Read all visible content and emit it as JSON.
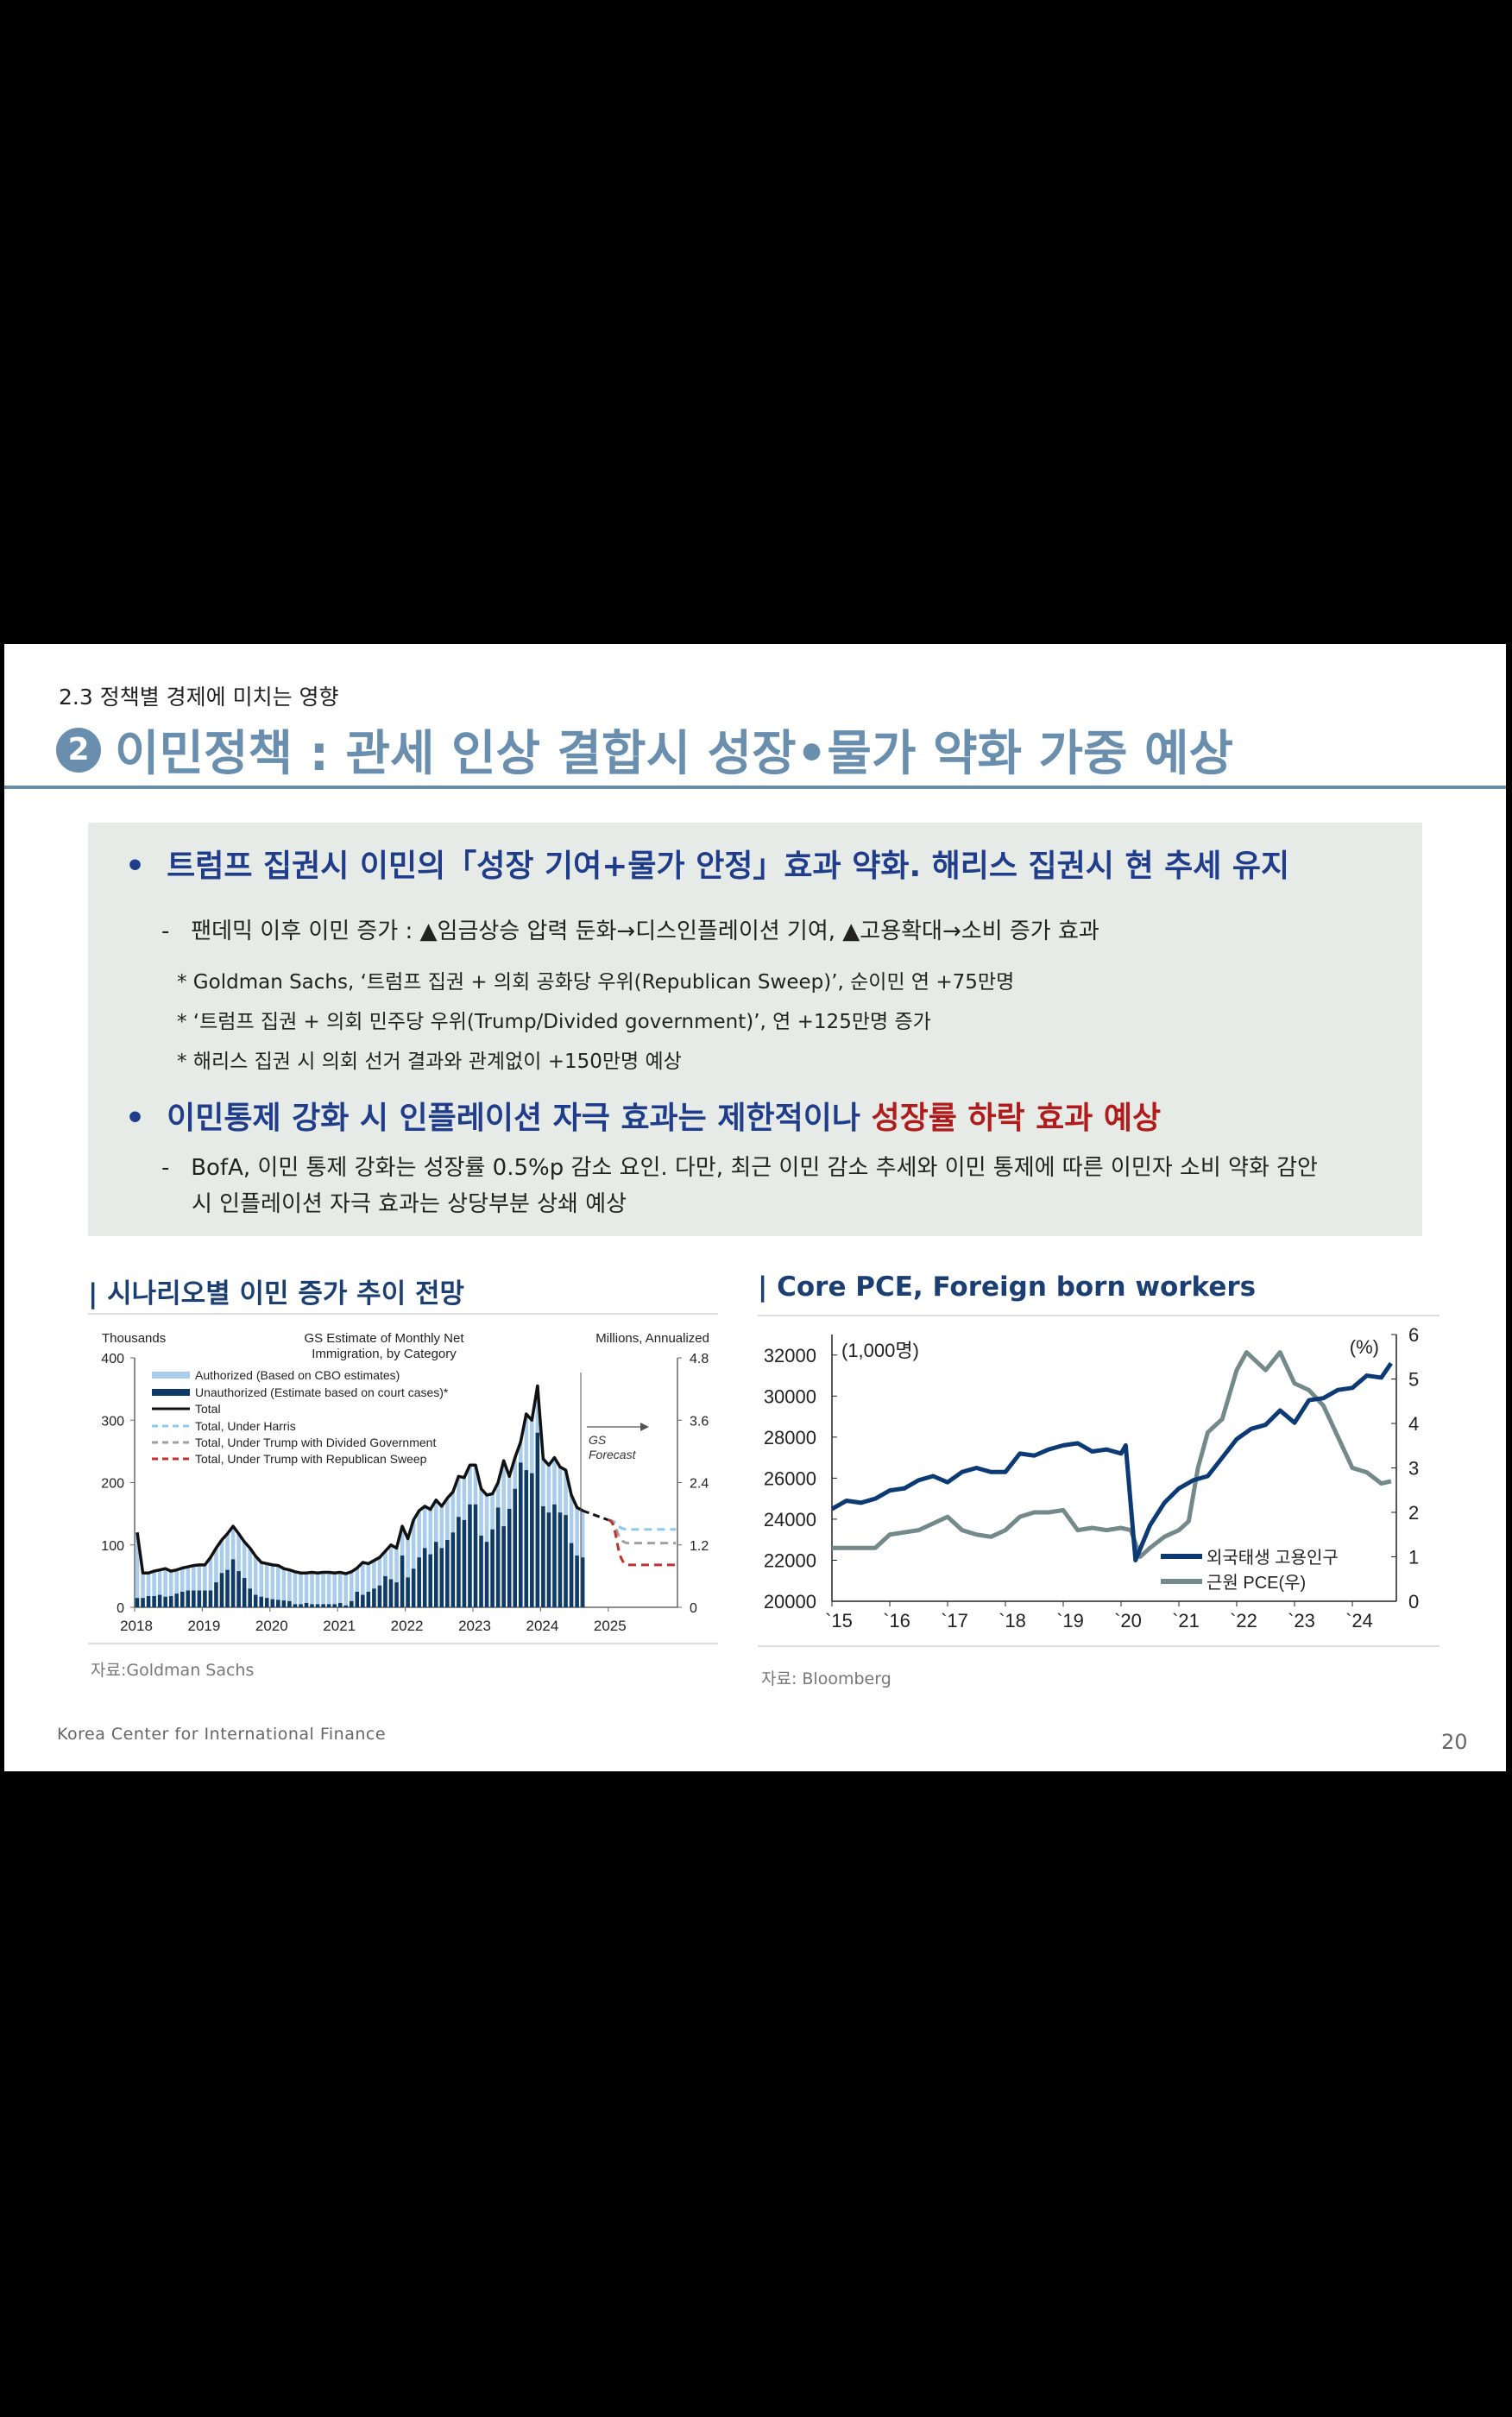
{
  "header": {
    "section": "2.3 정책별 경제에 미치는 영향",
    "number": "2",
    "title": "이민정책 :  관세 인상 결합시 성장•물가 약화 가중 예상"
  },
  "summary": {
    "bullet1": "트럼프 집권시 이민의「성장 기여+물가 안정」효과 약화. 해리스 집권시 현 추세 유지",
    "bullet1_sub": "팬데믹 이후 이민 증가 : ▲임금상승 압력 둔화→디스인플레이션 기여, ▲고용확대→소비 증가 효과",
    "notes": [
      "* Goldman Sachs, ‘트럼프 집권 + 의회 공화당 우위(Republican Sweep)’, 순이민 연 +75만명",
      "* ‘트럼프 집권 + 의회 민주당 우위(Trump/Divided government)’, 연 +125만명 증가",
      "* 해리스 집권 시 의회 선거 결과와 관계없이 +150만명 예상"
    ],
    "bullet2_main": "이민통제 강화 시 인플레이션 자극 효과는 제한적이나 ",
    "bullet2_red": "성장률 하락 효과 예상",
    "bullet2_sub1": "BofA, 이민 통제 강화는 성장률 0.5%p 감소 요인. 다만, 최근 이민 감소 추세와 이민 통제에 따른 이민자 소비 약화 감안",
    "bullet2_sub2": "시 인플레이션 자극 효과는 상당부분 상쇄 예상",
    "dash": "-",
    "dot": "•"
  },
  "chart_data": [
    {
      "type": "bar",
      "panel_title": "| 시나리오별 이민 증가 추이 전망",
      "title": "GS Estimate of Monthly Net Immigration, by Category",
      "title_lines": [
        "GS Estimate of Monthly Net",
        "Immigration,  by Category"
      ],
      "ylabel": "Thousands",
      "y2label": "Millions, Annualized",
      "ylim": [
        0,
        400
      ],
      "y2lim": [
        0,
        4.8
      ],
      "yticks": [
        "0",
        "100",
        "200",
        "300",
        "400"
      ],
      "y2ticks": [
        "0",
        "1.2",
        "2.4",
        "3.6",
        "4.8"
      ],
      "xticks": [
        "2018",
        "2019",
        "2020",
        "2021",
        "2022",
        "2023",
        "2024",
        "2025"
      ],
      "start": "2018-01",
      "total": [
        120,
        55,
        55,
        58,
        60,
        62,
        58,
        60,
        63,
        65,
        67,
        68,
        68,
        80,
        95,
        108,
        118,
        130,
        118,
        105,
        95,
        82,
        72,
        70,
        68,
        67,
        62,
        60,
        57,
        55,
        55,
        56,
        55,
        56,
        56,
        55,
        56,
        54,
        57,
        63,
        72,
        70,
        75,
        80,
        90,
        100,
        95,
        130,
        110,
        140,
        155,
        162,
        157,
        172,
        162,
        175,
        185,
        210,
        208,
        228,
        228,
        190,
        180,
        182,
        200,
        235,
        210,
        240,
        265,
        310,
        300,
        355,
        238,
        228,
        240,
        225,
        220,
        180,
        160,
        155
      ],
      "unauthorized": [
        15,
        15,
        18,
        18,
        20,
        17,
        18,
        22,
        25,
        27,
        27,
        27,
        27,
        27,
        40,
        55,
        60,
        77,
        58,
        47,
        30,
        20,
        17,
        15,
        13,
        12,
        11,
        10,
        5,
        5,
        7,
        5,
        5,
        5,
        5,
        5,
        7,
        3,
        10,
        25,
        20,
        25,
        30,
        35,
        50,
        45,
        40,
        83,
        48,
        62,
        80,
        95,
        85,
        105,
        95,
        108,
        120,
        145,
        140,
        165,
        165,
        115,
        105,
        125,
        160,
        130,
        158,
        190,
        232,
        220,
        215,
        280,
        162,
        152,
        165,
        152,
        148,
        103,
        83,
        80
      ],
      "forecast": {
        "label_lines": [
          "GS",
          "Forecast"
        ],
        "common": [
          [
            2024.62,
            155
          ],
          [
            2025.0,
            140
          ]
        ],
        "harris": 125,
        "divided": 103,
        "sweep": 68,
        "end": 2026.0
      },
      "legend": [
        "Authorized (Based on CBO estimates)",
        "Unauthorized (Estimate based on court cases)*",
        "Total",
        "Total, Under Harris",
        "Total, Under Trump with Divided Government",
        "Total, Under Trump with Republican Sweep"
      ],
      "colors": {
        "authorized": "#a9cdeb",
        "unauthorized": "#0d3a66",
        "total": "#111111",
        "harris": "#8ec8ee",
        "divided": "#a0a0a0",
        "sweep": "#c0302f"
      },
      "source": "자료:Goldman Sachs"
    },
    {
      "type": "line",
      "panel_title": "| Core PCE, Foreign born workers",
      "ylabel": "(1,000명)",
      "y2label": "(%)",
      "ylim": [
        20000,
        33000
      ],
      "y2lim": [
        0,
        6
      ],
      "yticks": [
        "20000",
        "22000",
        "24000",
        "26000",
        "28000",
        "30000",
        "32000"
      ],
      "y2ticks": [
        "0",
        "1",
        "2",
        "3",
        "4",
        "5",
        "6"
      ],
      "xticks": [
        "`15",
        "`16",
        "`17",
        "`18",
        "`19",
        "`20",
        "`21",
        "`22",
        "`23",
        "`24"
      ],
      "series": [
        {
          "name": "외국태생 고용인구",
          "axis": "left",
          "color": "#0b3a75",
          "points": [
            [
              2015.0,
              24500
            ],
            [
              2015.25,
              24900
            ],
            [
              2015.5,
              24800
            ],
            [
              2015.75,
              25000
            ],
            [
              2016.0,
              25400
            ],
            [
              2016.25,
              25500
            ],
            [
              2016.5,
              25900
            ],
            [
              2016.75,
              26100
            ],
            [
              2017.0,
              25800
            ],
            [
              2017.25,
              26300
            ],
            [
              2017.5,
              26500
            ],
            [
              2017.75,
              26300
            ],
            [
              2018.0,
              26300
            ],
            [
              2018.25,
              27200
            ],
            [
              2018.5,
              27100
            ],
            [
              2018.75,
              27400
            ],
            [
              2019.0,
              27600
            ],
            [
              2019.25,
              27700
            ],
            [
              2019.5,
              27300
            ],
            [
              2019.75,
              27400
            ],
            [
              2020.0,
              27200
            ],
            [
              2020.08,
              27600
            ],
            [
              2020.25,
              22000
            ],
            [
              2020.5,
              23700
            ],
            [
              2020.75,
              24800
            ],
            [
              2021.0,
              25500
            ],
            [
              2021.25,
              25900
            ],
            [
              2021.5,
              26100
            ],
            [
              2021.75,
              27000
            ],
            [
              2022.0,
              27900
            ],
            [
              2022.25,
              28400
            ],
            [
              2022.5,
              28600
            ],
            [
              2022.75,
              29300
            ],
            [
              2023.0,
              28700
            ],
            [
              2023.25,
              29800
            ],
            [
              2023.5,
              29900
            ],
            [
              2023.75,
              30300
            ],
            [
              2024.0,
              30400
            ],
            [
              2024.25,
              31000
            ],
            [
              2024.5,
              30900
            ],
            [
              2024.67,
              31600
            ]
          ]
        },
        {
          "name": "근원 PCE(우)",
          "axis": "right",
          "color": "#74898a",
          "points": [
            [
              2015.0,
              1.2
            ],
            [
              2015.5,
              1.2
            ],
            [
              2015.75,
              1.2
            ],
            [
              2016.0,
              1.5
            ],
            [
              2016.5,
              1.6
            ],
            [
              2016.75,
              1.75
            ],
            [
              2017.0,
              1.9
            ],
            [
              2017.25,
              1.6
            ],
            [
              2017.5,
              1.5
            ],
            [
              2017.75,
              1.45
            ],
            [
              2018.0,
              1.6
            ],
            [
              2018.25,
              1.9
            ],
            [
              2018.5,
              2.0
            ],
            [
              2018.75,
              2.0
            ],
            [
              2019.0,
              2.05
            ],
            [
              2019.25,
              1.6
            ],
            [
              2019.5,
              1.65
            ],
            [
              2019.75,
              1.6
            ],
            [
              2020.0,
              1.65
            ],
            [
              2020.17,
              1.6
            ],
            [
              2020.33,
              1.0
            ],
            [
              2020.5,
              1.2
            ],
            [
              2020.75,
              1.45
            ],
            [
              2021.0,
              1.6
            ],
            [
              2021.17,
              1.8
            ],
            [
              2021.33,
              3.0
            ],
            [
              2021.5,
              3.8
            ],
            [
              2021.75,
              4.1
            ],
            [
              2022.0,
              5.2
            ],
            [
              2022.17,
              5.6
            ],
            [
              2022.5,
              5.2
            ],
            [
              2022.75,
              5.6
            ],
            [
              2023.0,
              4.9
            ],
            [
              2023.25,
              4.75
            ],
            [
              2023.5,
              4.4
            ],
            [
              2023.75,
              3.7
            ],
            [
              2024.0,
              3.0
            ],
            [
              2024.25,
              2.9
            ],
            [
              2024.5,
              2.65
            ],
            [
              2024.67,
              2.7
            ]
          ]
        }
      ],
      "source": "자료: Bloomberg"
    }
  ],
  "footer": {
    "org": "Korea Center for International Finance",
    "page": "20"
  }
}
